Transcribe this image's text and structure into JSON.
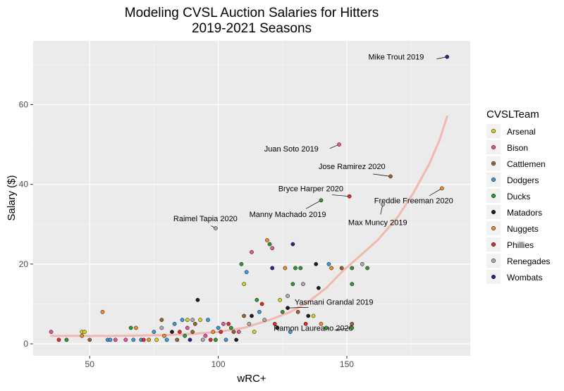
{
  "chart_data": {
    "type": "scatter",
    "title": "Modeling CVSL Auction Salaries for Hitters",
    "subtitle": "2019-2021 Seasons",
    "xlabel": "wRC+",
    "ylabel": "Salary ($)",
    "xlim": [
      28,
      198
    ],
    "ylim": [
      -3,
      76
    ],
    "xticks": [
      50,
      100,
      150
    ],
    "yticks": [
      0,
      20,
      40,
      60
    ],
    "grid": true,
    "legend": {
      "title": "CVSLTeam",
      "placement": "right",
      "entries": [
        {
          "name": "Arsenal",
          "color": "#d4d41a"
        },
        {
          "name": "Bison",
          "color": "#e8559b"
        },
        {
          "name": "Cattlemen",
          "color": "#a0622d"
        },
        {
          "name": "Dodgers",
          "color": "#3d9bdb"
        },
        {
          "name": "Ducks",
          "color": "#2e9a33"
        },
        {
          "name": "Matadors",
          "color": "#1f1f1f"
        },
        {
          "name": "Nuggets",
          "color": "#f08c2a"
        },
        {
          "name": "Phillies",
          "color": "#e52b2b"
        },
        {
          "name": "Renegades",
          "color": "#ababab"
        },
        {
          "name": "Wombats",
          "color": "#26288f"
        }
      ]
    },
    "trend": {
      "color": "#f0b8b0",
      "x": [
        35,
        60,
        80,
        90,
        100,
        110,
        120,
        128,
        135,
        142,
        148,
        155,
        162,
        170,
        176,
        182,
        186,
        189
      ],
      "y": [
        2,
        2,
        2.2,
        2.5,
        3,
        4,
        6,
        8,
        10.5,
        14,
        18,
        22,
        26,
        32,
        38,
        45,
        51,
        57
      ]
    },
    "points": [
      {
        "x": 189,
        "y": 72,
        "team": "Wombats",
        "label": "Mike Trout 2019",
        "lx": 180,
        "ly": 72,
        "anchor": "end"
      },
      {
        "x": 147,
        "y": 50,
        "team": "Bison",
        "label": "Juan Soto 2019",
        "lx": 139,
        "ly": 49,
        "anchor": "end"
      },
      {
        "x": 167,
        "y": 42,
        "team": "Cattlemen",
        "label": "Jose Ramirez 2020",
        "lx": 152,
        "ly": 44.5,
        "anchor": "middle"
      },
      {
        "x": 187,
        "y": 39,
        "team": "Nuggets",
        "label": "Freddie Freeman 2020",
        "lx": 176,
        "ly": 36,
        "anchor": "middle"
      },
      {
        "x": 151,
        "y": 37,
        "team": "Phillies",
        "label": "Bryce Harper 2020",
        "lx": 136,
        "ly": 39,
        "anchor": "middle"
      },
      {
        "x": 140,
        "y": 36,
        "team": "Ducks",
        "label": "Manny Machado 2019",
        "lx": 127,
        "ly": 32.5,
        "anchor": "middle"
      },
      {
        "x": 164,
        "y": 35,
        "team": "Renegades",
        "label": "Max Muncy 2019",
        "lx": 162,
        "ly": 30.5,
        "anchor": "middle"
      },
      {
        "x": 99,
        "y": 29,
        "team": "Renegades",
        "label": "Raimel Tapia 2020",
        "lx": 95,
        "ly": 31.5,
        "anchor": "middle"
      },
      {
        "x": 127,
        "y": 9,
        "team": "Matadors",
        "label": "Yasmani Grandal 2019",
        "lx": 145,
        "ly": 10.5,
        "anchor": "middle"
      },
      {
        "x": 152,
        "y": 4,
        "team": "Ducks",
        "label": "Ramon Laureano 2020",
        "lx": 137,
        "ly": 4,
        "anchor": "middle"
      },
      {
        "x": 35,
        "y": 3,
        "team": "Bison"
      },
      {
        "x": 38,
        "y": 1,
        "team": "Phillies"
      },
      {
        "x": 41,
        "y": 1,
        "team": "Ducks"
      },
      {
        "x": 47,
        "y": 3,
        "team": "Arsenal"
      },
      {
        "x": 48,
        "y": 3,
        "team": "Arsenal"
      },
      {
        "x": 47,
        "y": 2,
        "team": "Nuggets"
      },
      {
        "x": 50,
        "y": 1,
        "team": "Cattlemen"
      },
      {
        "x": 55,
        "y": 8,
        "team": "Nuggets"
      },
      {
        "x": 57,
        "y": 1,
        "team": "Dodgers"
      },
      {
        "x": 58,
        "y": 1,
        "team": "Dodgers"
      },
      {
        "x": 60,
        "y": 1,
        "team": "Bison"
      },
      {
        "x": 64,
        "y": 1,
        "team": "Bison"
      },
      {
        "x": 66,
        "y": 4,
        "team": "Ducks"
      },
      {
        "x": 67,
        "y": 1,
        "team": "Dodgers"
      },
      {
        "x": 68,
        "y": 4,
        "team": "Nuggets"
      },
      {
        "x": 70,
        "y": 1,
        "team": "Dodgers"
      },
      {
        "x": 71,
        "y": 1,
        "team": "Phillies"
      },
      {
        "x": 73,
        "y": 1,
        "team": "Nuggets"
      },
      {
        "x": 75,
        "y": 3,
        "team": "Dodgers"
      },
      {
        "x": 76,
        "y": 1,
        "team": "Arsenal"
      },
      {
        "x": 78,
        "y": 6,
        "team": "Cattlemen"
      },
      {
        "x": 78,
        "y": 4,
        "team": "Renegades"
      },
      {
        "x": 79,
        "y": 2,
        "team": "Nuggets"
      },
      {
        "x": 80,
        "y": 1,
        "team": "Dodgers"
      },
      {
        "x": 82,
        "y": 3,
        "team": "Matadors"
      },
      {
        "x": 83,
        "y": 5,
        "team": "Dodgers"
      },
      {
        "x": 84,
        "y": 1,
        "team": "Cattlemen"
      },
      {
        "x": 85,
        "y": 3,
        "team": "Phillies"
      },
      {
        "x": 86,
        "y": 6,
        "team": "Dodgers"
      },
      {
        "x": 87,
        "y": 2,
        "team": "Ducks"
      },
      {
        "x": 88,
        "y": 4,
        "team": "Bison"
      },
      {
        "x": 88,
        "y": 6,
        "team": "Arsenal"
      },
      {
        "x": 89,
        "y": 1,
        "team": "Wombats"
      },
      {
        "x": 90,
        "y": 3,
        "team": "Cattlemen"
      },
      {
        "x": 90,
        "y": 6,
        "team": "Renegades"
      },
      {
        "x": 91,
        "y": 5,
        "team": "Cattlemen"
      },
      {
        "x": 92,
        "y": 11,
        "team": "Matadors"
      },
      {
        "x": 93,
        "y": 6,
        "team": "Arsenal"
      },
      {
        "x": 94,
        "y": 1,
        "team": "Renegades"
      },
      {
        "x": 95,
        "y": 2,
        "team": "Bison"
      },
      {
        "x": 96,
        "y": 6,
        "team": "Dodgers"
      },
      {
        "x": 97,
        "y": 1,
        "team": "Phillies"
      },
      {
        "x": 98,
        "y": 3,
        "team": "Nuggets"
      },
      {
        "x": 99,
        "y": 1,
        "team": "Ducks"
      },
      {
        "x": 100,
        "y": 4,
        "team": "Dodgers"
      },
      {
        "x": 101,
        "y": 3,
        "team": "Phillies"
      },
      {
        "x": 102,
        "y": 5,
        "team": "Bison"
      },
      {
        "x": 103,
        "y": 1,
        "team": "Dodgers"
      },
      {
        "x": 104,
        "y": 5,
        "team": "Phillies"
      },
      {
        "x": 105,
        "y": 4,
        "team": "Ducks"
      },
      {
        "x": 106,
        "y": 3,
        "team": "Cattlemen"
      },
      {
        "x": 107,
        "y": 1,
        "team": "Matadors"
      },
      {
        "x": 108,
        "y": 3,
        "team": "Bison"
      },
      {
        "x": 109,
        "y": 20,
        "team": "Ducks"
      },
      {
        "x": 110,
        "y": 15,
        "team": "Arsenal"
      },
      {
        "x": 110,
        "y": 7,
        "team": "Cattlemen"
      },
      {
        "x": 111,
        "y": 18,
        "team": "Dodgers"
      },
      {
        "x": 112,
        "y": 5,
        "team": "Renegades"
      },
      {
        "x": 113,
        "y": 23,
        "team": "Bison"
      },
      {
        "x": 113,
        "y": 7,
        "team": "Matadors"
      },
      {
        "x": 114,
        "y": 3,
        "team": "Arsenal"
      },
      {
        "x": 115,
        "y": 11,
        "team": "Ducks"
      },
      {
        "x": 116,
        "y": 8,
        "team": "Dodgers"
      },
      {
        "x": 117,
        "y": 10,
        "team": "Phillies"
      },
      {
        "x": 118,
        "y": 6,
        "team": "Renegades"
      },
      {
        "x": 119,
        "y": 26,
        "team": "Nuggets"
      },
      {
        "x": 120,
        "y": 25,
        "team": "Ducks"
      },
      {
        "x": 121,
        "y": 24,
        "team": "Bison"
      },
      {
        "x": 121,
        "y": 19,
        "team": "Wombats"
      },
      {
        "x": 122,
        "y": 5,
        "team": "Phillies"
      },
      {
        "x": 123,
        "y": 4,
        "team": "Matadors"
      },
      {
        "x": 124,
        "y": 11,
        "team": "Arsenal"
      },
      {
        "x": 125,
        "y": 8,
        "team": "Ducks"
      },
      {
        "x": 126,
        "y": 19,
        "team": "Nuggets"
      },
      {
        "x": 127,
        "y": 12,
        "team": "Renegades"
      },
      {
        "x": 128,
        "y": 3,
        "team": "Dodgers"
      },
      {
        "x": 129,
        "y": 25,
        "team": "Wombats"
      },
      {
        "x": 129,
        "y": 15,
        "team": "Ducks"
      },
      {
        "x": 130,
        "y": 19,
        "team": "Ducks"
      },
      {
        "x": 131,
        "y": 8,
        "team": "Cattlemen"
      },
      {
        "x": 132,
        "y": 19,
        "team": "Ducks"
      },
      {
        "x": 133,
        "y": 15,
        "team": "Renegades"
      },
      {
        "x": 134,
        "y": 5,
        "team": "Phillies"
      },
      {
        "x": 135,
        "y": 7,
        "team": "Matadors"
      },
      {
        "x": 137,
        "y": 7,
        "team": "Arsenal"
      },
      {
        "x": 138,
        "y": 20,
        "team": "Matadors"
      },
      {
        "x": 139,
        "y": 14,
        "team": "Matadors"
      },
      {
        "x": 140,
        "y": 5,
        "team": "Nuggets"
      },
      {
        "x": 142,
        "y": 4,
        "team": "Ducks"
      },
      {
        "x": 143,
        "y": 20,
        "team": "Dodgers"
      },
      {
        "x": 144,
        "y": 19,
        "team": "Nuggets"
      },
      {
        "x": 148,
        "y": 19,
        "team": "Cattlemen"
      },
      {
        "x": 152,
        "y": 15,
        "team": "Ducks"
      },
      {
        "x": 152,
        "y": 19,
        "team": "Ducks"
      },
      {
        "x": 156,
        "y": 20,
        "team": "Renegades"
      },
      {
        "x": 158,
        "y": 19,
        "team": "Ducks"
      },
      {
        "x": 152,
        "y": 5,
        "team": "Cattlemen"
      }
    ]
  }
}
